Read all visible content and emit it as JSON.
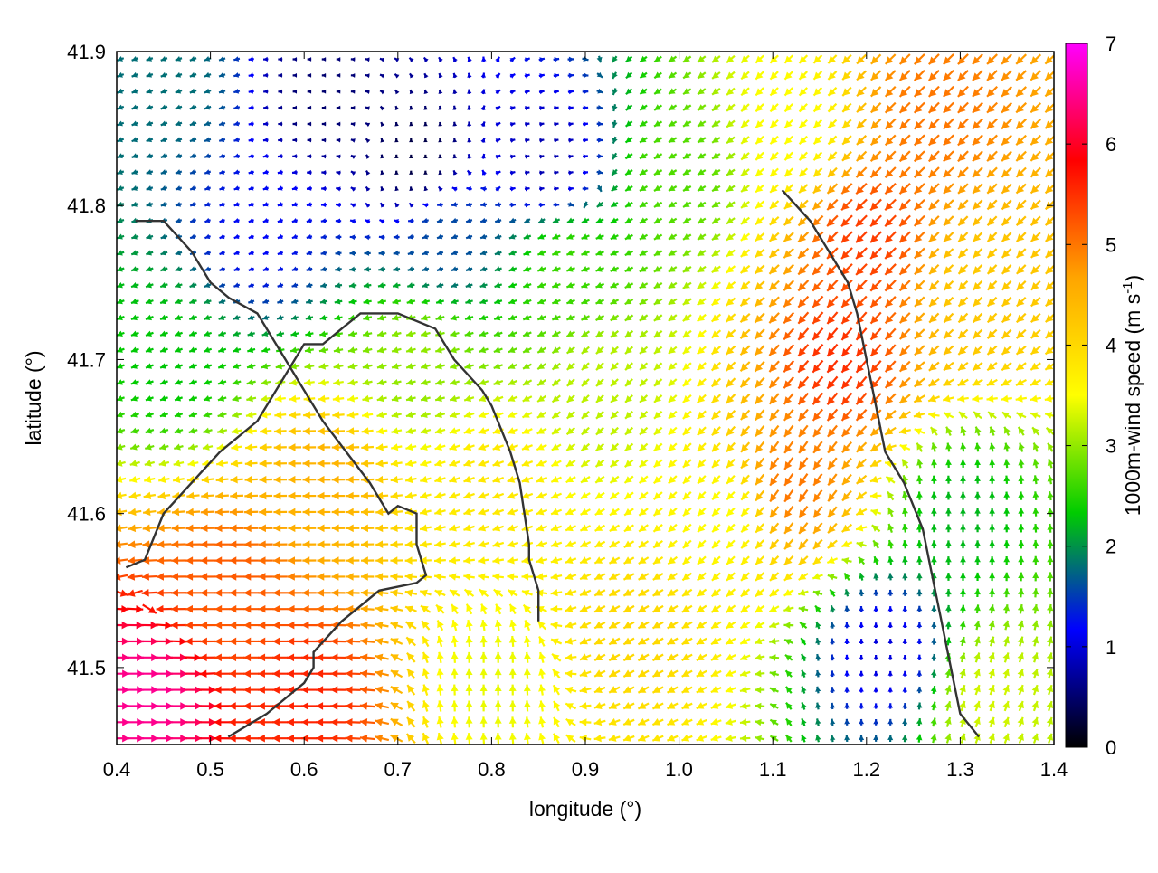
{
  "chart_data": {
    "type": "vector-field",
    "xlabel": "longitude (°)",
    "ylabel": "latitude (°)",
    "xlim": [
      0.4,
      1.4
    ],
    "ylim": [
      41.45,
      41.9
    ],
    "xticks": [
      "0.4",
      "0.5",
      "0.6",
      "0.7",
      "0.8",
      "0.9",
      "1.0",
      "1.1",
      "1.2",
      "1.3",
      "1.4"
    ],
    "xtick_values": [
      0.4,
      0.5,
      0.6,
      0.7,
      0.8,
      0.9,
      1.0,
      1.1,
      1.2,
      1.3,
      1.4
    ],
    "yticks": [
      "41.5",
      "41.6",
      "41.7",
      "41.8",
      "41.9"
    ],
    "ytick_values": [
      41.5,
      41.6,
      41.7,
      41.8,
      41.9
    ],
    "colorbar": {
      "label": "1000m-wind speed (m s",
      "label_sup": "-1",
      "label_tail": ")",
      "range": [
        0,
        7
      ],
      "ticks": [
        "0",
        "1",
        "2",
        "3",
        "4",
        "5",
        "6",
        "7"
      ],
      "tick_values": [
        0,
        1,
        2,
        3,
        4,
        5,
        6,
        7
      ],
      "colors": [
        "#000000",
        "#0000ff",
        "#00cc00",
        "#ffff00",
        "#ffa500",
        "#ff0000",
        "#ff00ff"
      ]
    },
    "grid": false,
    "legend": "none",
    "field_samples": [
      {
        "lon": 0.46,
        "lat": 41.88,
        "speed": 1.8,
        "dir_deg": 200
      },
      {
        "lon": 0.62,
        "lat": 41.87,
        "speed": 0.5,
        "dir_deg": 180
      },
      {
        "lon": 0.72,
        "lat": 41.83,
        "speed": 0.3,
        "dir_deg": 90
      },
      {
        "lon": 0.86,
        "lat": 41.83,
        "speed": 0.8,
        "dir_deg": 10
      },
      {
        "lon": 0.55,
        "lat": 41.78,
        "speed": 1.2,
        "dir_deg": 200
      },
      {
        "lon": 0.46,
        "lat": 41.7,
        "speed": 2.3,
        "dir_deg": 200
      },
      {
        "lon": 0.75,
        "lat": 41.78,
        "speed": 1.6,
        "dir_deg": 200
      },
      {
        "lon": 0.88,
        "lat": 41.76,
        "speed": 2.6,
        "dir_deg": 200
      },
      {
        "lon": 1.0,
        "lat": 41.82,
        "speed": 2.7,
        "dir_deg": 210
      },
      {
        "lon": 1.12,
        "lat": 41.85,
        "speed": 3.5,
        "dir_deg": 225
      },
      {
        "lon": 1.27,
        "lat": 41.86,
        "speed": 5.0,
        "dir_deg": 225
      },
      {
        "lon": 1.2,
        "lat": 41.78,
        "speed": 5.4,
        "dir_deg": 225
      },
      {
        "lon": 1.17,
        "lat": 41.7,
        "speed": 5.5,
        "dir_deg": 230
      },
      {
        "lon": 1.12,
        "lat": 41.62,
        "speed": 5.0,
        "dir_deg": 235
      },
      {
        "lon": 1.32,
        "lat": 41.75,
        "speed": 4.2,
        "dir_deg": 225
      },
      {
        "lon": 1.3,
        "lat": 41.6,
        "speed": 2.2,
        "dir_deg": 90
      },
      {
        "lon": 1.22,
        "lat": 41.51,
        "speed": 1.0,
        "dir_deg": 90
      },
      {
        "lon": 1.33,
        "lat": 41.48,
        "speed": 3.3,
        "dir_deg": 70
      },
      {
        "lon": 1.05,
        "lat": 41.6,
        "speed": 3.5,
        "dir_deg": 225
      },
      {
        "lon": 0.92,
        "lat": 41.68,
        "speed": 3.2,
        "dir_deg": 225
      },
      {
        "lon": 0.95,
        "lat": 41.52,
        "speed": 4.0,
        "dir_deg": 210
      },
      {
        "lon": 0.8,
        "lat": 41.62,
        "speed": 3.8,
        "dir_deg": 200
      },
      {
        "lon": 0.72,
        "lat": 41.7,
        "speed": 3.0,
        "dir_deg": 195
      },
      {
        "lon": 0.62,
        "lat": 41.62,
        "speed": 4.5,
        "dir_deg": 180
      },
      {
        "lon": 0.52,
        "lat": 41.55,
        "speed": 5.2,
        "dir_deg": 180
      },
      {
        "lon": 0.43,
        "lat": 41.48,
        "speed": 6.5,
        "dir_deg": 0
      },
      {
        "lon": 0.6,
        "lat": 41.48,
        "speed": 5.6,
        "dir_deg": 180
      },
      {
        "lon": 0.8,
        "lat": 41.49,
        "speed": 3.4,
        "dir_deg": 90
      }
    ],
    "contours": [
      [
        [
          0.519,
          41.455
        ],
        [
          0.56,
          41.47
        ],
        [
          0.6,
          41.49
        ],
        [
          0.61,
          41.5
        ],
        [
          0.61,
          41.51
        ],
        [
          0.64,
          41.53
        ],
        [
          0.68,
          41.55
        ],
        [
          0.72,
          41.555
        ],
        [
          0.73,
          41.56
        ],
        [
          0.72,
          41.58
        ],
        [
          0.72,
          41.6
        ],
        [
          0.7,
          41.605
        ],
        [
          0.69,
          41.6
        ],
        [
          0.67,
          41.62
        ],
        [
          0.645,
          41.64
        ],
        [
          0.62,
          41.66
        ],
        [
          0.6,
          41.68
        ],
        [
          0.58,
          41.7
        ],
        [
          0.55,
          41.73
        ],
        [
          0.52,
          41.74
        ],
        [
          0.5,
          41.75
        ],
        [
          0.48,
          41.77
        ],
        [
          0.45,
          41.79
        ],
        [
          0.42,
          41.79
        ]
      ],
      [
        [
          0.41,
          41.565
        ],
        [
          0.43,
          41.57
        ],
        [
          0.45,
          41.6
        ],
        [
          0.48,
          41.62
        ],
        [
          0.51,
          41.64
        ],
        [
          0.55,
          41.66
        ],
        [
          0.58,
          41.69
        ],
        [
          0.6,
          41.71
        ],
        [
          0.62,
          41.71
        ],
        [
          0.66,
          41.73
        ],
        [
          0.7,
          41.73
        ],
        [
          0.74,
          41.72
        ],
        [
          0.76,
          41.7
        ],
        [
          0.79,
          41.68
        ],
        [
          0.8,
          41.67
        ],
        [
          0.82,
          41.64
        ],
        [
          0.83,
          41.62
        ],
        [
          0.84,
          41.58
        ],
        [
          0.84,
          41.57
        ],
        [
          0.85,
          41.55
        ],
        [
          0.85,
          41.53
        ]
      ],
      [
        [
          1.32,
          41.455
        ],
        [
          1.3,
          41.47
        ],
        [
          1.29,
          41.5
        ],
        [
          1.28,
          41.53
        ],
        [
          1.27,
          41.56
        ],
        [
          1.26,
          41.59
        ],
        [
          1.24,
          41.62
        ],
        [
          1.22,
          41.64
        ],
        [
          1.21,
          41.67
        ],
        [
          1.2,
          41.7
        ],
        [
          1.19,
          41.73
        ],
        [
          1.18,
          41.75
        ],
        [
          1.16,
          41.77
        ],
        [
          1.14,
          41.79
        ],
        [
          1.11,
          41.81
        ]
      ]
    ]
  }
}
